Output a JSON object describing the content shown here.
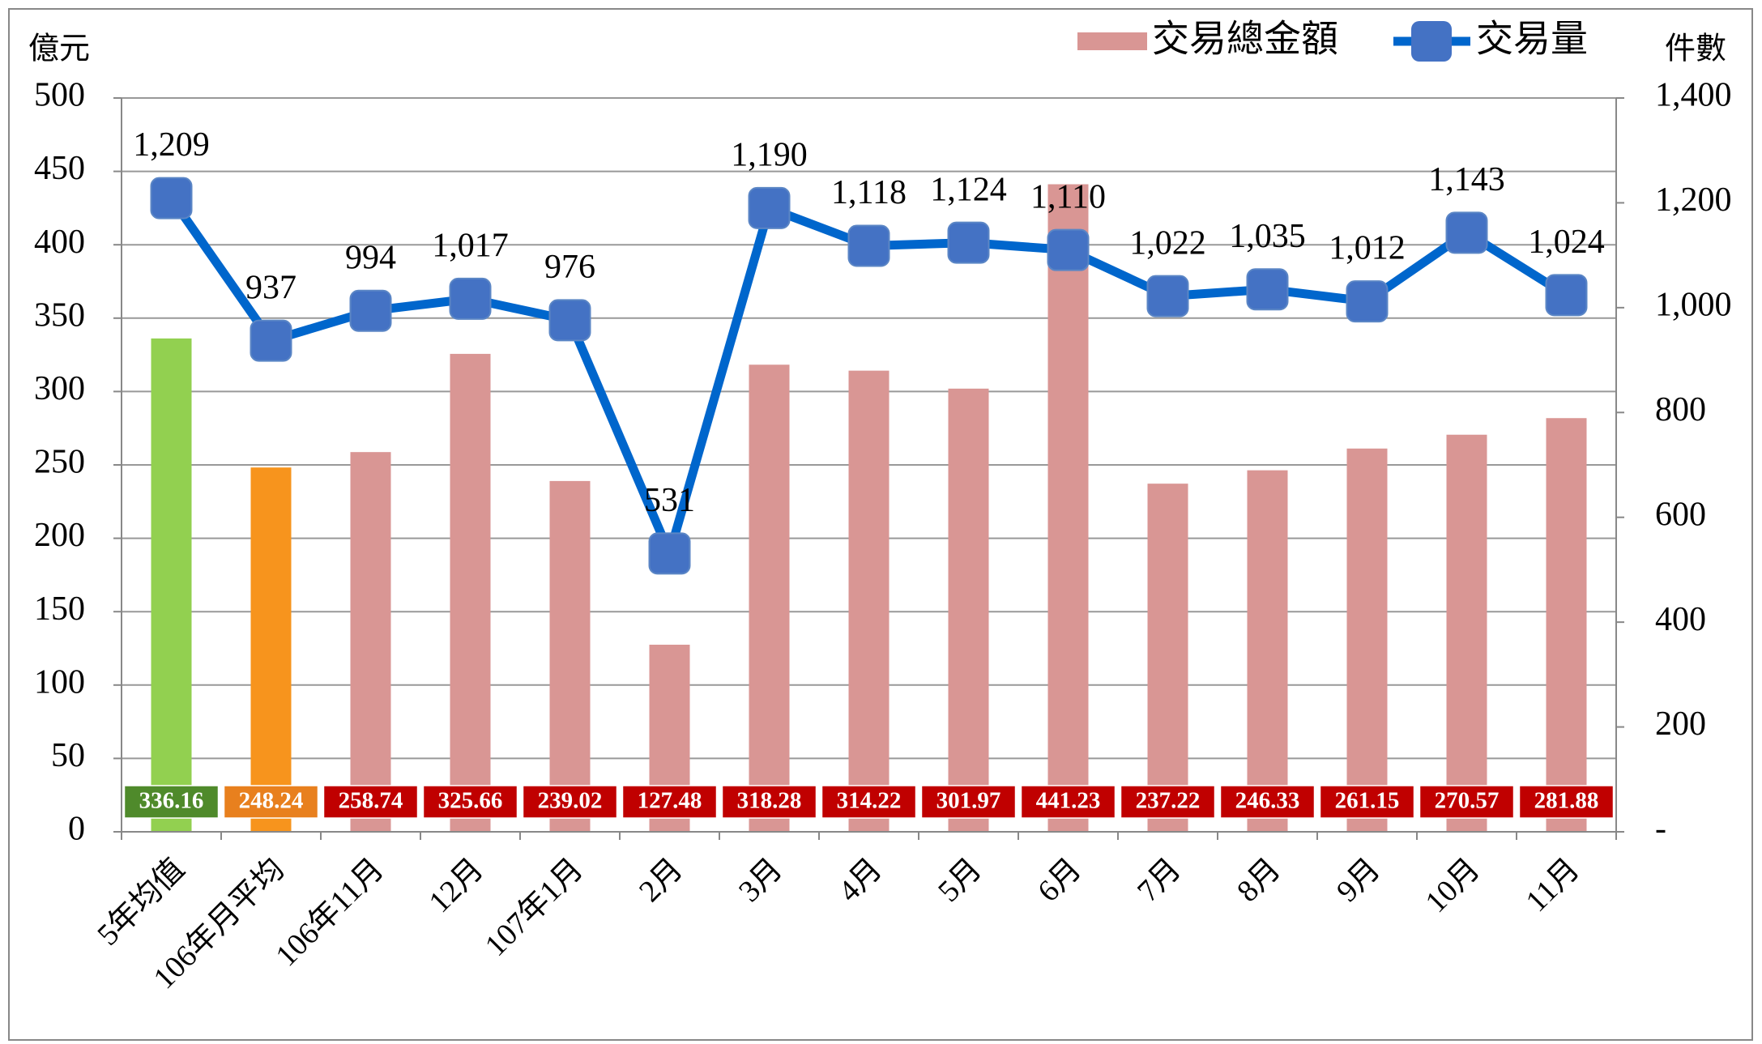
{
  "chart_data": {
    "type": "bar_line",
    "y_label": "億元",
    "y2_label": "件數",
    "categories": [
      "5年均值",
      "106年月平均",
      "106年11月",
      "12月",
      "107年1月",
      "2月",
      "3月",
      "4月",
      "5月",
      "6月",
      "7月",
      "8月",
      "9月",
      "10月",
      "11月"
    ],
    "series": [
      {
        "name": "交易總金額",
        "type": "bar",
        "color": "#d99694",
        "colors": [
          "#92d050",
          "#f7941d",
          "#d99694",
          "#d99694",
          "#d99694",
          "#d99694",
          "#d99694",
          "#d99694",
          "#d99694",
          "#d99694",
          "#d99694",
          "#d99694",
          "#d99694",
          "#d99694",
          "#d99694"
        ],
        "label_colors": [
          "#4f8a2b",
          "#e8801e",
          "#c00000",
          "#c00000",
          "#c00000",
          "#c00000",
          "#c00000",
          "#c00000",
          "#c00000",
          "#c00000",
          "#c00000",
          "#c00000",
          "#c00000",
          "#c00000",
          "#c00000"
        ],
        "values": [
          336.16,
          248.24,
          258.74,
          325.66,
          239.02,
          127.48,
          318.28,
          314.22,
          301.97,
          441.23,
          237.22,
          246.33,
          261.15,
          270.57,
          281.88
        ]
      },
      {
        "name": "交易量",
        "type": "line",
        "axis": "y2",
        "color": "#0066cc",
        "marker_color": "#4472c4",
        "values": [
          1209,
          937,
          994,
          1017,
          976,
          531,
          1190,
          1118,
          1124,
          1110,
          1022,
          1035,
          1012,
          1143,
          1024
        ],
        "value_labels": [
          "1,209",
          "937",
          "994",
          "1,017",
          "976",
          "531",
          "1,190",
          "1,118",
          "1,124",
          "1,110",
          "1,022",
          "1,035",
          "1,012",
          "1,143",
          "1,024"
        ]
      }
    ],
    "ylim": [
      0,
      500
    ],
    "yticks": [
      0,
      50,
      100,
      150,
      200,
      250,
      300,
      350,
      400,
      450,
      500
    ],
    "y2lim": [
      0,
      1400
    ],
    "y2ticks": [
      {
        "value": 0,
        "label": "-"
      },
      200,
      400,
      600,
      800,
      {
        "value": 1000,
        "label": "1,000"
      },
      {
        "value": 1200,
        "label": "1,200"
      },
      {
        "value": 1400,
        "label": "1,400"
      }
    ],
    "grid": true,
    "legend": "top-right"
  }
}
